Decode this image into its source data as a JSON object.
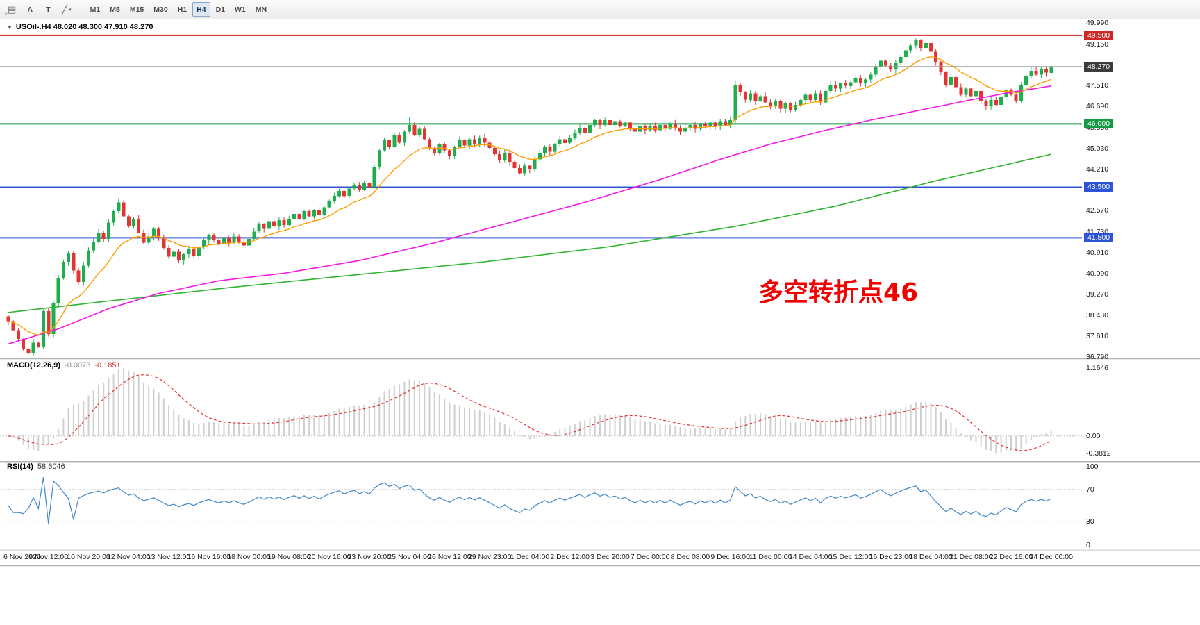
{
  "toolbar": {
    "f_hint": "F",
    "text_tool_label": "A",
    "textbox_tool_label": "T",
    "timeframes": [
      {
        "label": "M1",
        "active": false
      },
      {
        "label": "M5",
        "active": false
      },
      {
        "label": "M15",
        "active": false
      },
      {
        "label": "M30",
        "active": false
      },
      {
        "label": "H1",
        "active": false
      },
      {
        "label": "H4",
        "active": true
      },
      {
        "label": "D1",
        "active": false
      },
      {
        "label": "W1",
        "active": false
      },
      {
        "label": "MN",
        "active": false
      }
    ]
  },
  "icons": {
    "charts": "▤",
    "trendline": "╱",
    "dropdown": "▾",
    "collapse": "▼"
  },
  "chart": {
    "title": "USOil-.H4 48.020 48.300 47.910 48.270",
    "symbol": "USOil-",
    "period": "H4",
    "open": "48.020",
    "high": "48.300",
    "low": "47.910",
    "close": "48.270",
    "annotation": {
      "text": "多空转折点46"
    },
    "bid": {
      "price": 48.27,
      "label": "48.270"
    },
    "levels": [
      {
        "price": 49.5,
        "label": "49.500",
        "color": "#cf2626"
      },
      {
        "price": 46.0,
        "label": "46.000",
        "color": "#149a43"
      },
      {
        "price": 43.5,
        "label": "43.500",
        "color": "#2d53d8"
      },
      {
        "price": 41.5,
        "label": "41.500",
        "color": "#2d53d8"
      }
    ],
    "price_scale": [
      "49.990",
      "49.150",
      "48.330",
      "47.510",
      "46.690",
      "45.850",
      "45.030",
      "44.210",
      "43.390",
      "42.570",
      "41.730",
      "40.910",
      "40.090",
      "39.270",
      "38.430",
      "37.610",
      "36.790"
    ],
    "time_scale": [
      "6 Nov 2020",
      "9 Nov 12:00",
      "10 Nov 20:00",
      "12 Nov 04:00",
      "13 Nov 12:00",
      "16 Nov 16:00",
      "18 Nov 00:00",
      "19 Nov 08:00",
      "20 Nov 16:00",
      "23 Nov 20:00",
      "25 Nov 04:00",
      "26 Nov 12:00",
      "29 Nov 23:00",
      "1 Dec 04:00",
      "2 Dec 12:00",
      "3 Dec 20:00",
      "7 Dec 00:00",
      "8 Dec 08:00",
      "9 Dec 16:00",
      "11 Dec 00:00",
      "14 Dec 04:00",
      "15 Dec 12:00",
      "16 Dec 23:00",
      "18 Dec 04:00",
      "21 Dec 08:00",
      "22 Dec 16:00",
      "24 Dec 00:00"
    ]
  },
  "macd": {
    "name": "MACD(12,26,9)",
    "value_main": "-0.0073",
    "value_signal": "-0.1851",
    "fast": 12,
    "slow": 26,
    "signal": 9,
    "scale": {
      "max": "1.1646",
      "zero": "0.00",
      "min": "-0.3812"
    }
  },
  "rsi": {
    "name": "RSI(14)",
    "value": "58.6046",
    "period": 14,
    "scale": [
      "100",
      "70",
      "30",
      "0"
    ],
    "levels": [
      70,
      30
    ]
  },
  "colors": {
    "up": "#1fae4d",
    "down": "#e23430",
    "ma_fast": "#ff9c00",
    "ma_mid": "#f318e8",
    "ma_slow": "#2eb32e",
    "bid_line": "#9a9a9a",
    "bid_box": "#3c3c3c",
    "macd_hist": "#cfcfcf",
    "macd_signal": "#e23333",
    "rsi_line": "#3f86c9",
    "annotation": "#f30000"
  },
  "chart_data": {
    "type": "candlestick",
    "bars": 209,
    "first_open": 38.4,
    "closes": [
      38.2,
      37.85,
      37.5,
      37.1,
      36.95,
      37.35,
      37.2,
      38.6,
      37.7,
      38.9,
      39.9,
      40.55,
      40.9,
      40.2,
      39.75,
      40.4,
      41.0,
      41.35,
      41.7,
      41.45,
      42.1,
      42.55,
      42.9,
      42.35,
      41.95,
      42.25,
      41.7,
      41.3,
      41.55,
      41.85,
      41.5,
      41.1,
      40.75,
      40.95,
      40.6,
      40.85,
      41.05,
      40.8,
      41.15,
      41.4,
      41.6,
      41.4,
      41.25,
      41.5,
      41.3,
      41.55,
      41.35,
      41.2,
      41.45,
      41.75,
      42.05,
      41.85,
      42.15,
      41.95,
      42.2,
      42.0,
      42.25,
      42.45,
      42.25,
      42.55,
      42.35,
      42.6,
      42.4,
      42.7,
      42.95,
      43.15,
      43.35,
      43.15,
      43.45,
      43.6,
      43.4,
      43.65,
      43.5,
      44.3,
      44.95,
      45.35,
      45.1,
      45.55,
      45.25,
      45.7,
      45.95,
      45.55,
      45.8,
      45.4,
      45.05,
      44.85,
      45.2,
      44.95,
      44.75,
      45.1,
      45.35,
      45.15,
      45.4,
      45.2,
      45.45,
      45.25,
      45.05,
      44.8,
      44.55,
      44.85,
      44.5,
      44.25,
      44.05,
      44.35,
      44.2,
      44.6,
      44.85,
      45.1,
      44.9,
      45.2,
      45.4,
      45.25,
      45.45,
      45.65,
      45.85,
      45.65,
      45.95,
      46.15,
      45.95,
      46.15,
      45.95,
      46.1,
      45.9,
      46.05,
      45.85,
      45.7,
      45.9,
      45.75,
      45.9,
      45.75,
      45.95,
      45.8,
      46.0,
      45.85,
      45.7,
      45.85,
      45.95,
      45.8,
      46.0,
      45.9,
      46.05,
      45.9,
      46.1,
      45.95,
      46.15,
      47.55,
      47.25,
      46.95,
      47.2,
      46.9,
      47.1,
      46.85,
      46.7,
      46.9,
      46.6,
      46.8,
      46.55,
      46.75,
      46.95,
      47.15,
      46.95,
      47.2,
      46.85,
      47.3,
      47.55,
      47.4,
      47.6,
      47.5,
      47.65,
      47.8,
      47.6,
      47.75,
      47.95,
      48.25,
      48.5,
      48.3,
      48.15,
      48.4,
      48.65,
      48.9,
      49.1,
      49.3,
      49.0,
      49.2,
      48.85,
      48.45,
      48.05,
      47.55,
      47.85,
      47.45,
      47.15,
      47.4,
      47.1,
      47.3,
      46.9,
      46.7,
      46.95,
      46.75,
      47.05,
      47.35,
      47.15,
      46.9,
      47.55,
      47.9,
      48.1,
      47.95,
      48.15,
      48.02,
      48.27
    ],
    "wick_overrides": {
      "4": {
        "low": 36.88
      },
      "22": {
        "high": 43.06
      },
      "80": {
        "high": 46.25
      },
      "145": {
        "high": 47.72
      },
      "181": {
        "high": 49.38
      },
      "195": {
        "low": 46.55
      }
    },
    "ma_fast_period": 13,
    "ma_mid_anchors": [
      [
        0,
        37.3
      ],
      [
        10,
        37.9
      ],
      [
        20,
        38.7
      ],
      [
        30,
        39.3
      ],
      [
        42,
        39.8
      ],
      [
        55,
        40.1
      ],
      [
        70,
        40.6
      ],
      [
        85,
        41.3
      ],
      [
        100,
        42.1
      ],
      [
        115,
        42.9
      ],
      [
        130,
        43.8
      ],
      [
        142,
        44.6
      ],
      [
        152,
        45.2
      ],
      [
        162,
        45.7
      ],
      [
        172,
        46.15
      ],
      [
        182,
        46.55
      ],
      [
        192,
        46.95
      ],
      [
        200,
        47.25
      ],
      [
        208,
        47.5
      ]
    ],
    "ma_slow_anchors": [
      [
        0,
        38.55
      ],
      [
        20,
        39.0
      ],
      [
        45,
        39.55
      ],
      [
        70,
        40.05
      ],
      [
        95,
        40.55
      ],
      [
        120,
        41.15
      ],
      [
        145,
        41.95
      ],
      [
        165,
        42.75
      ],
      [
        185,
        43.75
      ],
      [
        208,
        44.8
      ]
    ]
  }
}
